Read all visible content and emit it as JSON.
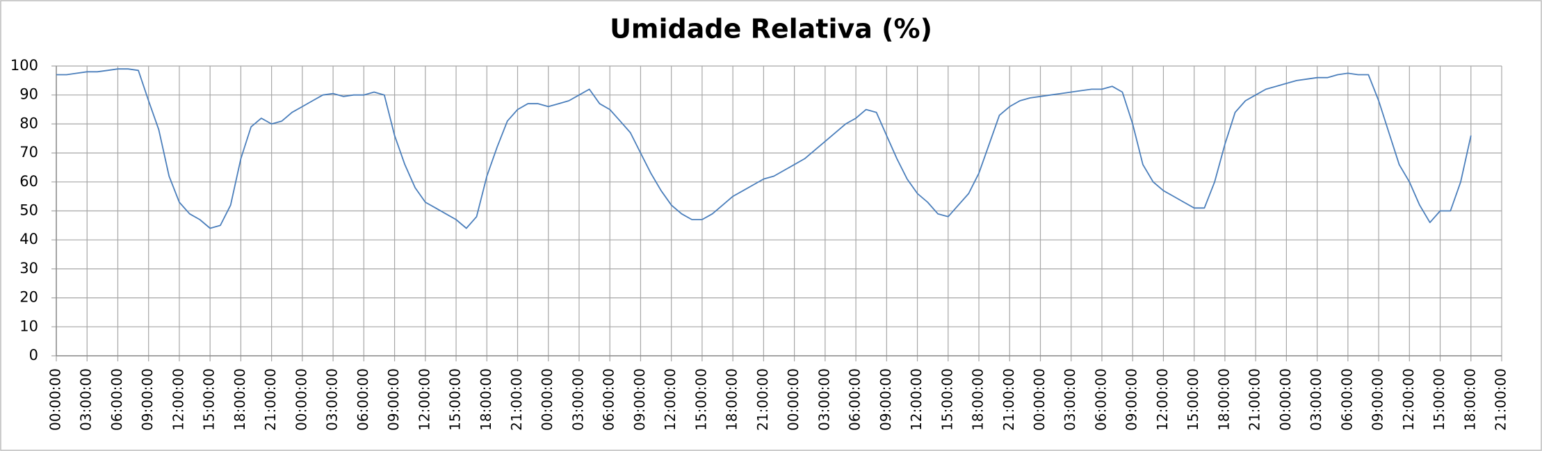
{
  "chart_data": {
    "type": "line",
    "title": "Umidade Relativa (%)",
    "series": [
      {
        "color": "#4a7ebb",
        "x": [
          0,
          1,
          2,
          3,
          4,
          5,
          6,
          7,
          8,
          9,
          10,
          11,
          12,
          13,
          14,
          15,
          16,
          17,
          18,
          19,
          20,
          21,
          22,
          23,
          24,
          25,
          26,
          27,
          28,
          29,
          30,
          31,
          32,
          33,
          34,
          35,
          36,
          37,
          38,
          39,
          40,
          41,
          42,
          43,
          44,
          45,
          46,
          47,
          48,
          49,
          50,
          51,
          52,
          53,
          54,
          55,
          56,
          57,
          58,
          59,
          60,
          61,
          62,
          63,
          64,
          65,
          66,
          67,
          68,
          69,
          70,
          71,
          72,
          73,
          74,
          75,
          76,
          77,
          78,
          79,
          80,
          81,
          82,
          83,
          84,
          85,
          86,
          87,
          88,
          89,
          90,
          91,
          92,
          93,
          94,
          95,
          96,
          97,
          98,
          99,
          100,
          101,
          102,
          103,
          104,
          105,
          106,
          107,
          108,
          109,
          110,
          111,
          112,
          113,
          114,
          115,
          116,
          117,
          118,
          119,
          120,
          121,
          122,
          123,
          124,
          125,
          126,
          127,
          128,
          129,
          130,
          131,
          132,
          133,
          134,
          135,
          136,
          137,
          138
        ],
        "values": [
          97,
          97,
          97.5,
          98,
          98,
          98.5,
          99,
          99,
          98.5,
          88,
          78,
          62,
          53,
          49,
          47,
          44,
          45,
          52,
          68,
          79,
          82,
          80,
          81,
          84,
          86,
          88,
          90,
          90.5,
          89.5,
          90,
          90,
          91,
          90,
          76,
          66,
          58,
          53,
          51,
          49,
          47,
          44,
          48,
          62,
          72,
          81,
          85,
          87,
          87,
          86,
          87,
          88,
          90,
          92,
          87,
          85,
          81,
          77,
          70,
          63,
          57,
          52,
          49,
          47,
          47,
          49,
          52,
          55,
          57,
          59,
          61,
          62,
          64,
          66,
          68,
          71,
          74,
          77,
          80,
          82,
          85,
          84,
          76,
          68,
          61,
          56,
          53,
          49,
          48,
          52,
          56,
          63,
          73,
          83,
          86,
          88,
          89,
          89.5,
          90,
          90.5,
          91,
          91.5,
          92,
          92,
          93,
          91,
          80,
          66,
          60,
          57,
          55,
          53,
          51,
          51,
          60,
          73,
          84,
          88,
          90,
          92,
          93,
          94,
          95,
          95.5,
          96,
          96,
          97,
          97.5,
          97,
          97,
          88,
          77,
          66,
          60,
          52,
          46,
          50,
          50,
          60,
          76
        ]
      }
    ],
    "xlim": [
      0,
      141
    ],
    "xticks": [
      {
        "value": 0,
        "label": "00:00:00"
      },
      {
        "value": 3,
        "label": "03:00:00"
      },
      {
        "value": 6,
        "label": "06:00:00"
      },
      {
        "value": 9,
        "label": "09:00:00"
      },
      {
        "value": 12,
        "label": "12:00:00"
      },
      {
        "value": 15,
        "label": "15:00:00"
      },
      {
        "value": 18,
        "label": "18:00:00"
      },
      {
        "value": 21,
        "label": "21:00:00"
      },
      {
        "value": 24,
        "label": "00:00:00"
      },
      {
        "value": 27,
        "label": "03:00:00"
      },
      {
        "value": 30,
        "label": "06:00:00"
      },
      {
        "value": 33,
        "label": "09:00:00"
      },
      {
        "value": 36,
        "label": "12:00:00"
      },
      {
        "value": 39,
        "label": "15:00:00"
      },
      {
        "value": 42,
        "label": "18:00:00"
      },
      {
        "value": 45,
        "label": "21:00:00"
      },
      {
        "value": 48,
        "label": "00:00:00"
      },
      {
        "value": 51,
        "label": "03:00:00"
      },
      {
        "value": 54,
        "label": "06:00:00"
      },
      {
        "value": 57,
        "label": "09:00:00"
      },
      {
        "value": 60,
        "label": "12:00:00"
      },
      {
        "value": 63,
        "label": "15:00:00"
      },
      {
        "value": 66,
        "label": "18:00:00"
      },
      {
        "value": 69,
        "label": "21:00:00"
      },
      {
        "value": 72,
        "label": "00:00:00"
      },
      {
        "value": 75,
        "label": "03:00:00"
      },
      {
        "value": 78,
        "label": "06:00:00"
      },
      {
        "value": 81,
        "label": "09:00:00"
      },
      {
        "value": 84,
        "label": "12:00:00"
      },
      {
        "value": 87,
        "label": "15:00:00"
      },
      {
        "value": 90,
        "label": "18:00:00"
      },
      {
        "value": 93,
        "label": "21:00:00"
      },
      {
        "value": 96,
        "label": "00:00:00"
      },
      {
        "value": 99,
        "label": "03:00:00"
      },
      {
        "value": 102,
        "label": "06:00:00"
      },
      {
        "value": 105,
        "label": "09:00:00"
      },
      {
        "value": 108,
        "label": "12:00:00"
      },
      {
        "value": 111,
        "label": "15:00:00"
      },
      {
        "value": 114,
        "label": "18:00:00"
      },
      {
        "value": 117,
        "label": "21:00:00"
      },
      {
        "value": 120,
        "label": "00:00:00"
      },
      {
        "value": 123,
        "label": "03:00:00"
      },
      {
        "value": 126,
        "label": "06:00:00"
      },
      {
        "value": 129,
        "label": "09:00:00"
      },
      {
        "value": 132,
        "label": "12:00:00"
      },
      {
        "value": 135,
        "label": "15:00:00"
      },
      {
        "value": 138,
        "label": "18:00:00"
      },
      {
        "value": 141,
        "label": "21:00:00"
      }
    ],
    "ylim": [
      0,
      100
    ],
    "yticks": [
      0,
      10,
      20,
      30,
      40,
      50,
      60,
      70,
      80,
      90,
      100
    ],
    "grid": true
  }
}
